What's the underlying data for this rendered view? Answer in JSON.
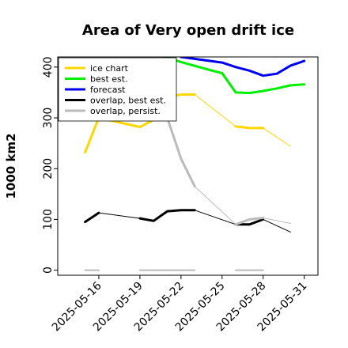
{
  "chart_data": {
    "type": "line",
    "title": "Area of Very open drift ice",
    "ylabel": "1000 km2",
    "xlabel": "",
    "x_range": [
      "2025-05-13",
      "2025-06-01"
    ],
    "ylim": [
      -10,
      420
    ],
    "y_ticks": [
      0,
      100,
      200,
      300,
      400
    ],
    "x_ticks": [
      "2025-05-16",
      "2025-05-19",
      "2025-05-22",
      "2025-05-25",
      "2025-05-28",
      "2025-05-31"
    ],
    "highlight_tick": "2025-05-22",
    "highlight_color": "#2e8b2e",
    "legend_position": "upper-left",
    "series": [
      {
        "name": "ice chart",
        "color": "#FFD700",
        "segments": [
          {
            "x": [
              "2025-05-15",
              "2025-05-16",
              "2025-05-19",
              "2025-05-20",
              "2025-05-21",
              "2025-05-22",
              "2025-05-23"
            ],
            "y": [
              232,
              300,
              282,
              296,
              340,
              346,
              346
            ],
            "width": 3
          },
          {
            "x": [
              "2025-05-23",
              "2025-05-26"
            ],
            "y": [
              346,
              283
            ],
            "width": 1
          },
          {
            "x": [
              "2025-05-26",
              "2025-05-27",
              "2025-05-28"
            ],
            "y": [
              283,
              280,
              280
            ],
            "width": 3
          },
          {
            "x": [
              "2025-05-28",
              "2025-05-30"
            ],
            "y": [
              280,
              244
            ],
            "width": 1
          }
        ]
      },
      {
        "name": "best est.",
        "color": "#00EE00",
        "segments": [
          {
            "x": [
              "2025-05-19",
              "2025-05-20",
              "2025-05-22",
              "2025-05-24",
              "2025-05-25",
              "2025-05-26",
              "2025-05-27",
              "2025-05-28",
              "2025-05-29",
              "2025-05-30",
              "2025-05-31"
            ],
            "y": [
              440,
              428,
              410,
              395,
              388,
              350,
              349,
              353,
              358,
              364,
              366
            ],
            "width": 3
          }
        ]
      },
      {
        "name": "forecast",
        "color": "#0000EE",
        "segments": [
          {
            "x": [
              "2025-05-22",
              "2025-05-25",
              "2025-05-26",
              "2025-05-27",
              "2025-05-28",
              "2025-05-29",
              "2025-05-30",
              "2025-05-31"
            ],
            "y": [
              420,
              409,
              400,
              393,
              383,
              387,
              403,
              412
            ],
            "width": 3
          }
        ]
      },
      {
        "name": "overlap, best est.",
        "color": "#000000",
        "segments": [
          {
            "x": [
              "2025-05-15",
              "2025-05-16"
            ],
            "y": [
              95,
              113
            ],
            "width": 3
          },
          {
            "x": [
              "2025-05-16",
              "2025-05-19"
            ],
            "y": [
              113,
              102
            ],
            "width": 1
          },
          {
            "x": [
              "2025-05-19",
              "2025-05-20",
              "2025-05-21",
              "2025-05-22",
              "2025-05-23"
            ],
            "y": [
              102,
              97,
              116,
              118,
              118
            ],
            "width": 3
          },
          {
            "x": [
              "2025-05-23",
              "2025-05-26"
            ],
            "y": [
              118,
              90
            ],
            "width": 1
          },
          {
            "x": [
              "2025-05-26",
              "2025-05-27",
              "2025-05-28"
            ],
            "y": [
              90,
              90,
              100
            ],
            "width": 3
          },
          {
            "x": [
              "2025-05-28",
              "2025-05-30"
            ],
            "y": [
              100,
              75
            ],
            "width": 1
          }
        ]
      },
      {
        "name": "overlap, persist.",
        "color": "#BBBBBB",
        "segments": [
          {
            "x": [
              "2025-05-15",
              "2025-05-16"
            ],
            "y": [
              0,
              0
            ],
            "width": 2
          },
          {
            "x": [
              "2025-05-19",
              "2025-05-23"
            ],
            "y": [
              0,
              0
            ],
            "width": 2
          },
          {
            "x": [
              "2025-05-26",
              "2025-05-28"
            ],
            "y": [
              0,
              0
            ],
            "width": 2
          },
          {
            "x": [
              "2025-05-20",
              "2025-05-21",
              "2025-05-22",
              "2025-05-23"
            ],
            "y": [
              340,
              300,
              220,
              165
            ],
            "width": 3
          },
          {
            "x": [
              "2025-05-23",
              "2025-05-26"
            ],
            "y": [
              165,
              90
            ],
            "width": 1
          },
          {
            "x": [
              "2025-05-26",
              "2025-05-27",
              "2025-05-28"
            ],
            "y": [
              90,
              100,
              103
            ],
            "width": 3
          },
          {
            "x": [
              "2025-05-28",
              "2025-05-30"
            ],
            "y": [
              103,
              92
            ],
            "width": 1
          }
        ]
      }
    ]
  }
}
